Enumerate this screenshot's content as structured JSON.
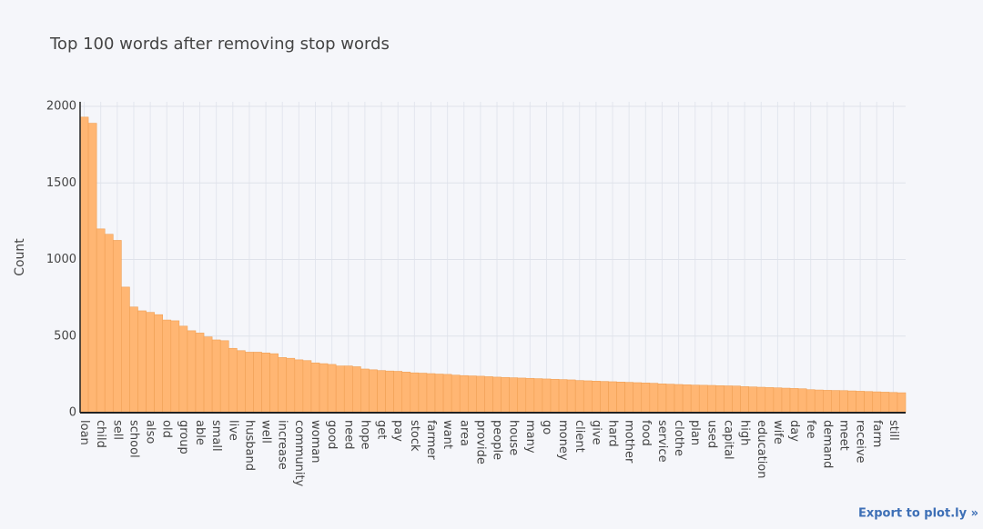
{
  "chart_data": {
    "type": "bar",
    "title": "Top 100 words after removing stop words",
    "y_label": "Count",
    "categories": [
      "loan",
      null,
      "child",
      null,
      "sell",
      null,
      "school",
      null,
      "also",
      null,
      "old",
      null,
      "group",
      null,
      "able",
      null,
      "small",
      null,
      "live",
      null,
      "husband",
      null,
      "well",
      null,
      "increase",
      null,
      "community",
      null,
      "woman",
      null,
      "good",
      null,
      "need",
      null,
      "hope",
      null,
      "get",
      null,
      "pay",
      null,
      "stock",
      null,
      "farmer",
      null,
      "want",
      null,
      "area",
      null,
      "provide",
      null,
      "people",
      null,
      "house",
      null,
      "many",
      null,
      "go",
      null,
      "money",
      null,
      "client",
      null,
      "give",
      null,
      "hard",
      null,
      "mother",
      null,
      "food",
      null,
      "service",
      null,
      "clothe",
      null,
      "plan",
      null,
      "used",
      null,
      "capital",
      null,
      "high",
      null,
      "education",
      null,
      "wife",
      null,
      "day",
      null,
      "fee",
      null,
      "demand",
      null,
      "meet",
      null,
      "receive",
      null,
      "farm",
      null,
      "still",
      null
    ],
    "values": [
      1930,
      1890,
      1200,
      1165,
      1125,
      820,
      690,
      665,
      655,
      640,
      605,
      600,
      565,
      535,
      520,
      495,
      475,
      470,
      420,
      405,
      395,
      395,
      390,
      385,
      360,
      355,
      345,
      340,
      325,
      320,
      315,
      305,
      305,
      300,
      285,
      280,
      275,
      272,
      270,
      265,
      260,
      258,
      255,
      252,
      250,
      245,
      242,
      240,
      238,
      235,
      232,
      230,
      228,
      226,
      224,
      222,
      220,
      218,
      216,
      214,
      210,
      208,
      206,
      204,
      202,
      200,
      198,
      196,
      194,
      192,
      188,
      186,
      184,
      182,
      180,
      179,
      178,
      176,
      175,
      174,
      170,
      168,
      166,
      164,
      162,
      160,
      158,
      156,
      150,
      148,
      146,
      145,
      144,
      142,
      140,
      138,
      136,
      134,
      132,
      130
    ],
    "color": "#ffb673",
    "ylim": [
      0,
      2030
    ],
    "yticks": [
      0,
      500,
      1000,
      1500,
      2000
    ],
    "grid": true
  },
  "export_link": "Export to plot.ly »"
}
